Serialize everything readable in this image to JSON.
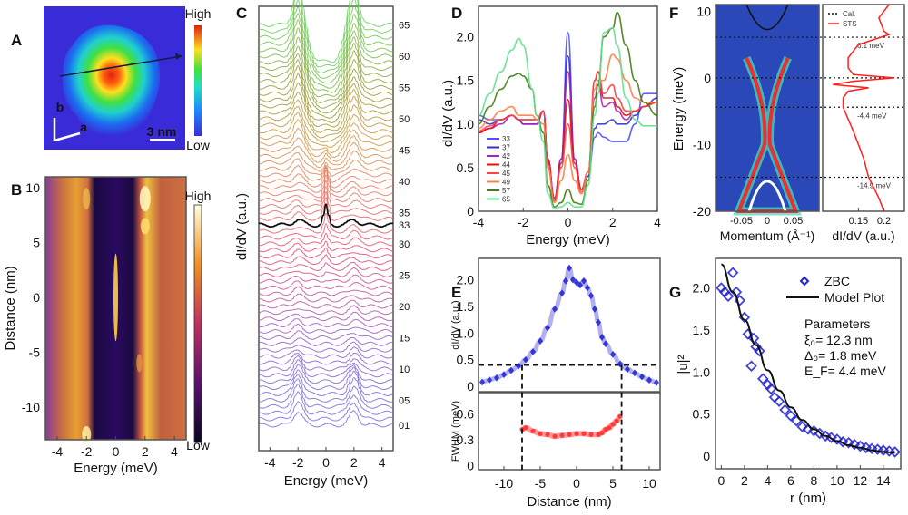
{
  "figure": {
    "panel_labels": [
      "A",
      "B",
      "C",
      "D",
      "E",
      "F",
      "G"
    ]
  },
  "chart_data": [
    {
      "panel": "A",
      "type": "heatmap",
      "title": "",
      "colorbar": {
        "high_label": "High",
        "low_label": "Low",
        "colormap": "jet"
      },
      "annotations": {
        "axis_a": "a",
        "axis_b": "b",
        "scale_bar": "3 nm"
      },
      "description": "dI/dV map of a vortex with a linecut arrow through the center"
    },
    {
      "panel": "B",
      "type": "heatmap",
      "xlabel": "Energy (meV)",
      "ylabel": "Distance (nm)",
      "x_ticks": [
        "-4",
        "-2",
        "0",
        "2",
        "4"
      ],
      "y_ticks": [
        "10",
        "5",
        "0",
        "-5",
        "-10"
      ],
      "xlim": [
        -4.8,
        4.8
      ],
      "ylim": [
        -13,
        11
      ],
      "colorbar": {
        "high_label": "High",
        "low_label": "Low",
        "colormap": "inferno"
      },
      "features": {
        "dark_gap_band": [
          -1.2,
          1.2
        ],
        "zero_bias_peak_distance_range": [
          -4,
          4
        ],
        "coherence_peaks_energy": [
          -2,
          2
        ]
      }
    },
    {
      "panel": "C",
      "type": "line",
      "xlabel": "Energy (meV)",
      "ylabel": "dI/dV (a.u.)",
      "x_ticks": [
        "-4",
        "-2",
        "0",
        "2",
        "4"
      ],
      "xlim": [
        -4.8,
        4.8
      ],
      "curve_count": 65,
      "highlighted_curve": "33",
      "curve_labels": [
        "65",
        "60",
        "55",
        "50",
        "45",
        "40",
        "35",
        "33",
        "30",
        "25",
        "20",
        "15",
        "10",
        "05",
        "01"
      ],
      "curve_label_colors": [
        "#5cd65c",
        "#5cd65c",
        "#8fbf3f",
        "#a08a10",
        "#e07a20",
        "#e04040",
        "#f0607a",
        "#111111",
        "#f0607a",
        "#e03050",
        "#c02040",
        "#5050c0",
        "#3030b0",
        "#3030c0",
        "#3030c0"
      ]
    },
    {
      "panel": "D",
      "type": "line",
      "xlabel": "Energy (meV)",
      "ylabel": "dI/dV (a.u.)",
      "x_ticks": [
        "-4",
        "-2",
        "0",
        "2",
        "4"
      ],
      "y_ticks": [
        "0",
        "0.5",
        "1.0",
        "1.5",
        "2.0"
      ],
      "xlim": [
        -4,
        4
      ],
      "ylim": [
        0,
        2.35
      ],
      "legend_position": "bottom-left",
      "x": [
        -4,
        -3.5,
        -3,
        -2.5,
        -2.2,
        -2,
        -1.6,
        -1.4,
        -1.1,
        -0.9,
        -0.6,
        -0.3,
        0,
        0.3,
        0.6,
        0.9,
        1.2,
        1.35,
        1.6,
        2,
        2.2,
        2.6,
        3,
        3.4,
        4
      ],
      "series": [
        {
          "name": "33",
          "color": "#5050ff",
          "values": [
            1.1,
            1.05,
            1.05,
            1.1,
            1.05,
            1.0,
            1.0,
            1.0,
            1.15,
            0.6,
            0.15,
            0.6,
            2.05,
            0.6,
            0.25,
            0.4,
            0.85,
            0.9,
            0.85,
            0.8,
            0.8,
            0.8,
            1.0,
            1.35,
            1.35
          ]
        },
        {
          "name": "37",
          "color": "#3030d0",
          "values": [
            1.05,
            1.0,
            1.05,
            1.1,
            1.05,
            1.0,
            1.0,
            1.0,
            1.15,
            0.6,
            0.15,
            0.6,
            1.78,
            0.6,
            0.25,
            0.4,
            0.95,
            1.0,
            1.0,
            1.05,
            1.0,
            1.0,
            1.1,
            1.2,
            1.3
          ]
        },
        {
          "name": "42",
          "color": "#b020b0",
          "values": [
            0.9,
            0.95,
            1.0,
            1.1,
            1.05,
            1.0,
            1.0,
            1.0,
            1.15,
            0.6,
            0.15,
            0.6,
            1.6,
            0.6,
            0.25,
            0.45,
            1.3,
            1.45,
            1.2,
            1.25,
            1.15,
            1.05,
            1.15,
            1.2,
            1.25
          ]
        },
        {
          "name": "44",
          "color": "#e01010",
          "values": [
            0.9,
            0.95,
            1.05,
            1.1,
            1.05,
            1.05,
            1.05,
            1.05,
            1.15,
            0.6,
            0.12,
            0.55,
            1.28,
            0.55,
            0.25,
            0.45,
            1.5,
            1.6,
            1.3,
            1.3,
            1.2,
            1.1,
            1.15,
            1.2,
            1.25
          ]
        },
        {
          "name": "45",
          "color": "#ff4040",
          "values": [
            0.92,
            0.98,
            1.05,
            1.1,
            1.05,
            1.05,
            1.05,
            1.05,
            1.15,
            0.55,
            0.12,
            0.5,
            1.0,
            0.5,
            0.22,
            0.45,
            1.5,
            1.6,
            1.35,
            1.45,
            1.3,
            1.15,
            1.15,
            1.2,
            1.25
          ]
        },
        {
          "name": "49",
          "color": "#ff8040",
          "values": [
            0.95,
            1.05,
            1.15,
            1.2,
            1.1,
            1.1,
            1.1,
            1.05,
            1.0,
            0.5,
            0.1,
            0.35,
            0.65,
            0.35,
            0.2,
            0.45,
            1.4,
            1.5,
            1.5,
            1.8,
            1.75,
            1.5,
            1.3,
            1.25,
            1.25
          ]
        },
        {
          "name": "57",
          "color": "#408010",
          "values": [
            1.0,
            1.2,
            1.4,
            1.55,
            1.58,
            1.55,
            1.4,
            1.1,
            0.9,
            0.3,
            0.05,
            0.1,
            0.25,
            0.1,
            0.08,
            0.35,
            1.2,
            1.45,
            2.0,
            2.1,
            2.28,
            1.9,
            1.5,
            1.25,
            1.1
          ]
        },
        {
          "name": "65",
          "color": "#60e090",
          "values": [
            1.1,
            1.35,
            1.6,
            1.85,
            1.98,
            1.9,
            1.4,
            1.1,
            0.8,
            0.2,
            0.03,
            0.05,
            0.1,
            0.05,
            0.05,
            0.3,
            1.1,
            1.35,
            2.05,
            2.1,
            1.9,
            1.3,
            1.05,
            0.98,
            0.98
          ]
        }
      ]
    },
    {
      "panel": "E",
      "type": "scatter",
      "xlabel": "Distance (nm)",
      "x_ticks": [
        "-10",
        "-5",
        "0",
        "5",
        "10"
      ],
      "xlim": [
        -13.5,
        11.5
      ],
      "subplots": [
        {
          "ylabel": "dI/dV (a.u.)",
          "y_ticks": [
            "0",
            "0.5",
            "1.0",
            "1.5",
            "2.0"
          ],
          "ylim": [
            -0.1,
            2.4
          ],
          "color": "#2020d0",
          "threshold_line": 0.4,
          "x": [
            -13,
            -12,
            -11,
            -10,
            -9,
            -8,
            -7,
            -6,
            -5,
            -4,
            -3,
            -2,
            -1.5,
            -1,
            -0.5,
            0,
            0.5,
            1,
            1.5,
            2,
            2.5,
            3,
            3.5,
            4,
            5,
            6,
            7,
            8,
            9,
            10,
            11
          ],
          "values": [
            0.08,
            0.12,
            0.16,
            0.22,
            0.3,
            0.38,
            0.5,
            0.65,
            0.85,
            1.1,
            1.45,
            1.75,
            1.98,
            2.22,
            2.0,
            1.95,
            1.9,
            1.98,
            1.85,
            1.7,
            1.45,
            1.2,
            0.92,
            0.8,
            0.6,
            0.42,
            0.32,
            0.25,
            0.18,
            0.12,
            0.07
          ]
        },
        {
          "ylabel": "FWHM (meV)",
          "y_ticks": [
            "0",
            "0.3",
            "0.6"
          ],
          "ylim": [
            -0.05,
            0.85
          ],
          "color": "#ff2020",
          "x": [
            -7.5,
            -7,
            -6,
            -5,
            -4,
            -3,
            -2,
            -1,
            0,
            1,
            2,
            3,
            3.5,
            4,
            4.5,
            5,
            5.5,
            6
          ],
          "values": [
            0.42,
            0.44,
            0.4,
            0.37,
            0.36,
            0.34,
            0.35,
            0.36,
            0.37,
            0.37,
            0.36,
            0.36,
            0.38,
            0.42,
            0.44,
            0.48,
            0.52,
            0.57
          ]
        }
      ],
      "vertical_markers": [
        -7.5,
        6.2
      ]
    },
    {
      "panel": "F",
      "type": "heatmap",
      "ylabel": "Energy (meV)",
      "y_ticks": [
        "10",
        "0",
        "-10",
        "-20"
      ],
      "ylim": [
        -20,
        11
      ],
      "left": {
        "xlabel": "Momentum (Å⁻¹)",
        "x_ticks": [
          "-0.05",
          "0",
          "0.05"
        ],
        "xlim": [
          -0.1,
          0.1
        ]
      },
      "right": {
        "xlabel": "dI/dV (a.u.)",
        "x_ticks": [
          "0.15",
          "0.2"
        ],
        "xlim": [
          0.08,
          0.24
        ],
        "legend": [
          {
            "name": "Cal.",
            "style": "dotted",
            "color": "#111111"
          },
          {
            "name": "STS",
            "style": "solid",
            "color": "#ff2020"
          }
        ],
        "sts_energy": [
          11,
          9,
          7,
          6.5,
          5,
          3,
          1.5,
          0.5,
          0,
          -0.5,
          -1,
          -1.5,
          -2,
          -3,
          -4.4,
          -8,
          -12,
          -14.9,
          -18,
          -20
        ],
        "sts_values": [
          0.21,
          0.19,
          0.2,
          0.21,
          0.15,
          0.13,
          0.13,
          0.14,
          0.22,
          0.14,
          0.1,
          0.17,
          0.13,
          0.12,
          0.12,
          0.14,
          0.16,
          0.17,
          0.19,
          0.2
        ]
      },
      "reference_lines": [
        {
          "energy": 6.1,
          "label": "6.1 meV"
        },
        {
          "energy": 0,
          "label": ""
        },
        {
          "energy": -4.4,
          "label": "-4.4 meV"
        },
        {
          "energy": -14.9,
          "label": "-14.9 meV"
        }
      ]
    },
    {
      "panel": "G",
      "type": "scatter",
      "xlabel": "r (nm)",
      "ylabel": "|u|²",
      "x_ticks": [
        "0",
        "2",
        "4",
        "6",
        "8",
        "10",
        "12",
        "14"
      ],
      "y_ticks": [
        "0",
        "0.5",
        "1.0",
        "1.5",
        "2.0"
      ],
      "xlim": [
        -0.5,
        15.5
      ],
      "ylim": [
        -0.15,
        2.35
      ],
      "legend": [
        {
          "name": "ZBC",
          "marker": "diamond",
          "color": "#2020d0"
        },
        {
          "name": "Model Plot",
          "style": "solid",
          "color": "#111111"
        }
      ],
      "parameters_title": "Parameters",
      "parameters": [
        "ξ₀= 12.3 nm",
        "Δ₀= 1.8 meV",
        "E_F= 4.4 meV"
      ],
      "zbc_r": [
        0,
        0.3,
        0.6,
        1.0,
        1.3,
        1.6,
        2.0,
        2.3,
        2.6,
        2.8,
        3.0,
        3.3,
        3.6,
        4.0,
        4.3,
        4.6,
        5.0,
        5.5,
        6.0,
        6.5,
        7.0,
        7.5,
        8.0,
        8.5,
        9.0,
        9.5,
        10,
        10.5,
        11,
        11.5,
        12,
        12.5,
        13,
        13.5,
        14,
        14.5,
        15
      ],
      "zbc_values": [
        2.0,
        1.95,
        1.9,
        2.18,
        1.95,
        1.85,
        1.65,
        1.45,
        1.07,
        1.4,
        1.3,
        1.25,
        0.92,
        0.85,
        0.8,
        0.7,
        0.65,
        0.55,
        0.48,
        0.42,
        0.35,
        0.32,
        0.3,
        0.27,
        0.24,
        0.22,
        0.2,
        0.17,
        0.16,
        0.14,
        0.12,
        0.1,
        0.09,
        0.08,
        0.07,
        0.06,
        0.05
      ],
      "model_r": [
        0,
        1,
        2,
        3,
        4,
        5,
        6,
        7,
        8,
        9,
        10,
        11,
        12,
        13,
        14,
        15
      ],
      "model_values": [
        2.28,
        1.95,
        1.62,
        1.32,
        1.02,
        0.78,
        0.58,
        0.43,
        0.32,
        0.24,
        0.18,
        0.13,
        0.1,
        0.07,
        0.05,
        0.04
      ]
    }
  ]
}
